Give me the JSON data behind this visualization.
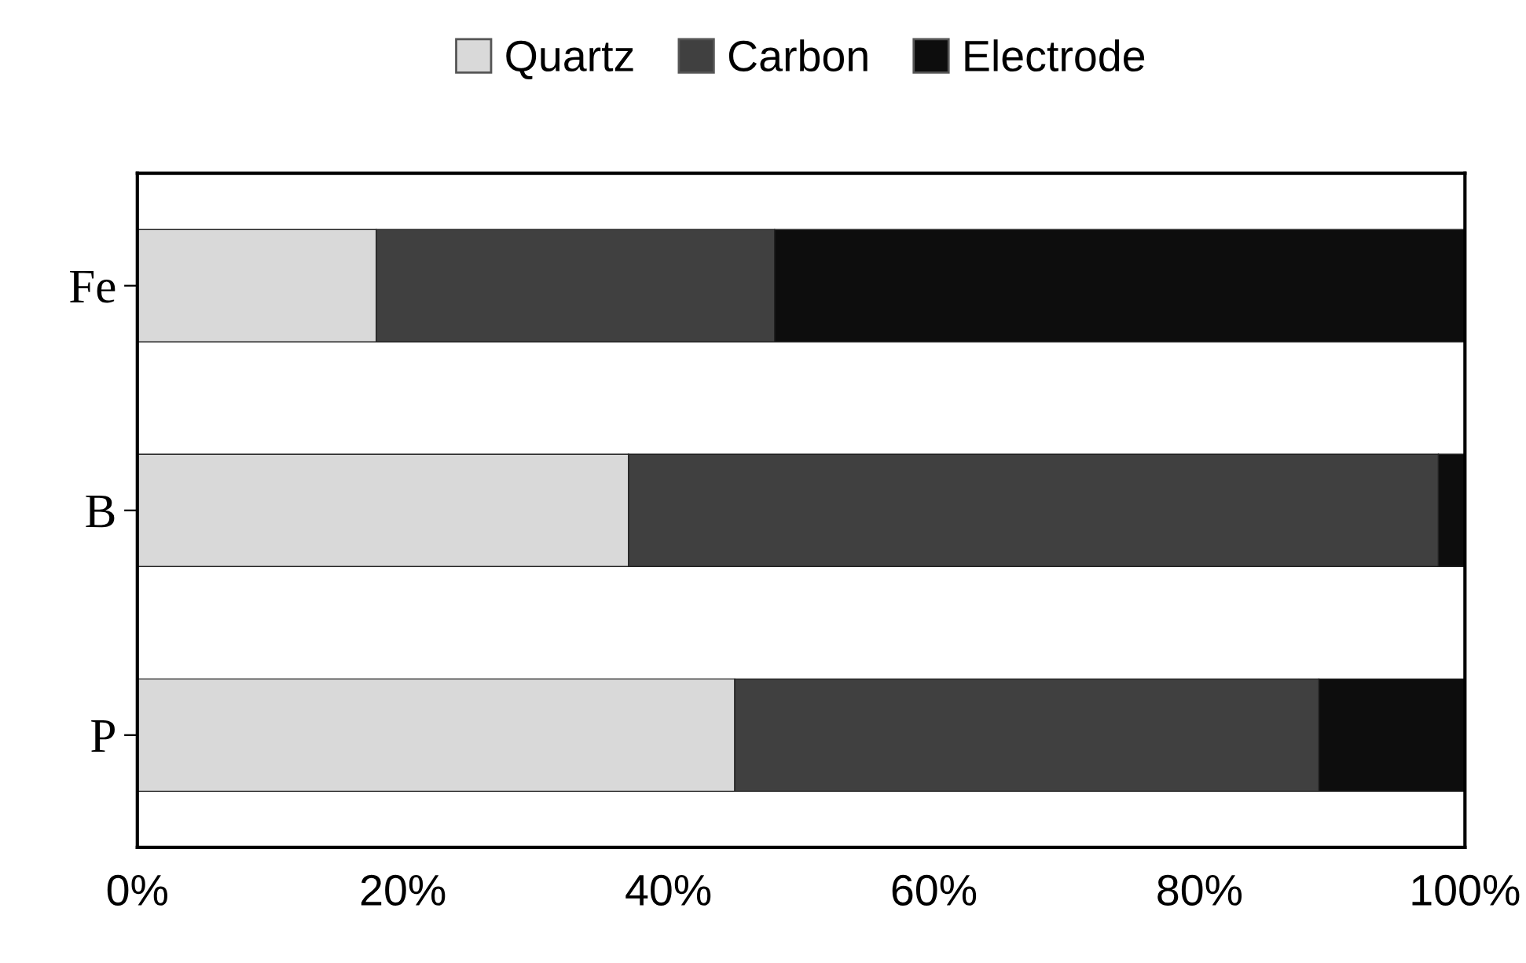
{
  "chart_data": {
    "type": "bar",
    "orientation": "horizontal",
    "stacked": true,
    "categories": [
      "Fe",
      "B",
      "P"
    ],
    "series": [
      {
        "name": "Quartz",
        "color": "#d9d9d9",
        "values": [
          18,
          37,
          45
        ]
      },
      {
        "name": "Carbon",
        "color": "#404040",
        "values": [
          30,
          61,
          44
        ]
      },
      {
        "name": "Electrode",
        "color": "#0d0d0d",
        "values": [
          52,
          2,
          11
        ]
      }
    ],
    "xlim": [
      0,
      100
    ],
    "xticks": [
      {
        "value": 0,
        "label": "0%"
      },
      {
        "value": 20,
        "label": "20%"
      },
      {
        "value": 40,
        "label": "40%"
      },
      {
        "value": 60,
        "label": "60%"
      },
      {
        "value": 80,
        "label": "80%"
      },
      {
        "value": 100,
        "label": "100%"
      }
    ],
    "grid": false,
    "legend": "top"
  }
}
